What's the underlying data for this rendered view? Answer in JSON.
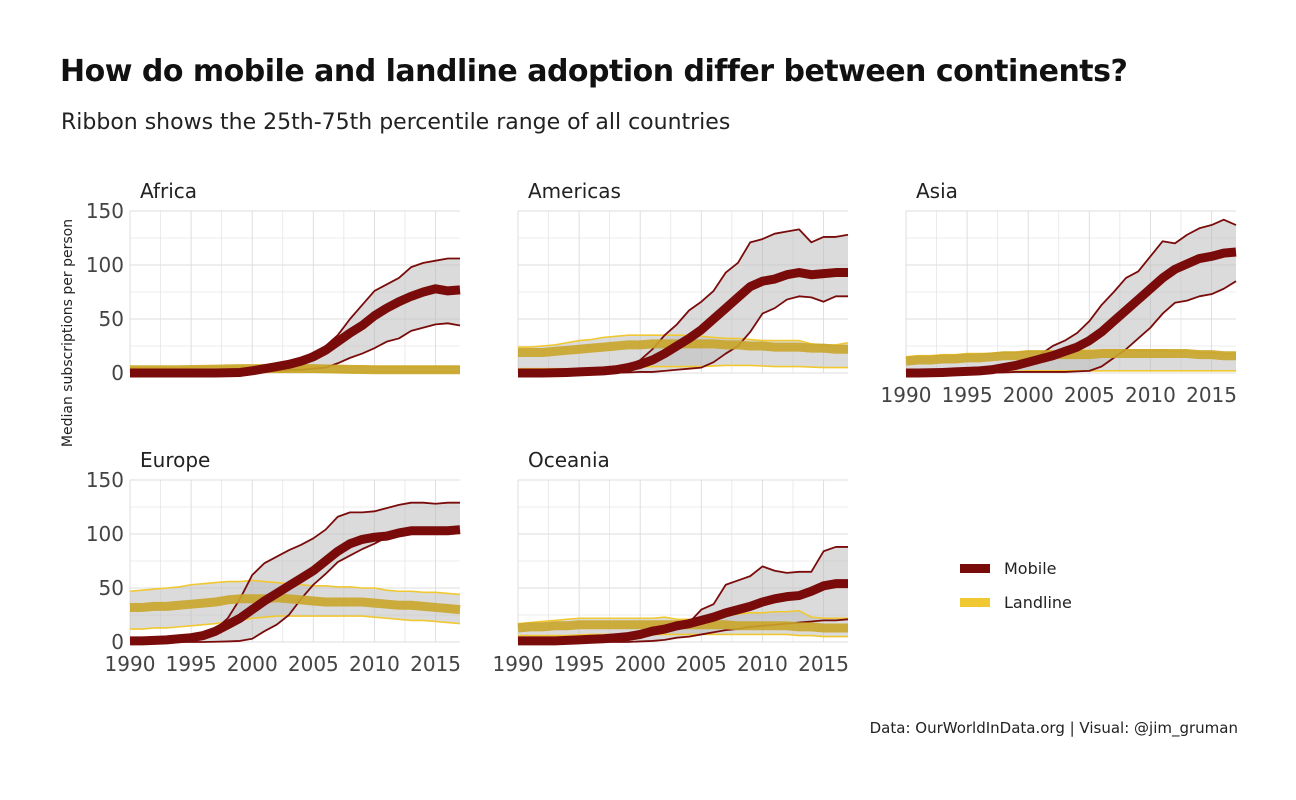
{
  "title": "How do mobile and landline adoption differ between continents?",
  "subtitle": "Ribbon shows the 25th-75th percentile range of all countries",
  "caption": "Data: OurWorldInData.org | Visual: @jim_gruman",
  "colors": {
    "mobile": "#7a0b0b",
    "landline": "#f0c832",
    "ribbon": "#bdbdbd",
    "grid": "#dedede"
  },
  "chart_data": {
    "type": "line",
    "ylabel": "Median subscriptions per person",
    "xlim": [
      1990,
      2017
    ],
    "ylim": [
      0,
      150
    ],
    "x_ticks": [
      1990,
      1995,
      2000,
      2005,
      2010,
      2015
    ],
    "y_ticks": [
      0,
      50,
      100,
      150
    ],
    "legend": {
      "position": "right",
      "entries": [
        "Mobile",
        "Landline"
      ]
    },
    "x": [
      1990,
      1991,
      1992,
      1993,
      1994,
      1995,
      1996,
      1997,
      1998,
      1999,
      2000,
      2001,
      2002,
      2003,
      2004,
      2005,
      2006,
      2007,
      2008,
      2009,
      2010,
      2011,
      2012,
      2013,
      2014,
      2015,
      2016,
      2017
    ],
    "panels": [
      {
        "name": "Africa",
        "mobile": {
          "median": [
            0,
            0,
            0,
            0,
            0,
            0,
            0,
            0,
            0.2,
            0.5,
            2,
            4,
            6,
            8,
            11,
            15,
            21,
            29,
            37,
            44,
            53,
            60,
            66,
            71,
            75,
            78,
            76,
            77
          ],
          "p25": [
            0,
            0,
            0,
            0,
            0,
            0,
            0,
            0,
            0,
            0,
            0.3,
            1,
            2,
            3,
            3,
            4,
            5,
            9,
            14,
            18,
            23,
            29,
            32,
            39,
            42,
            45,
            46,
            44
          ],
          "p75": [
            0,
            0,
            0,
            0,
            0,
            0,
            0,
            0,
            0.5,
            1.5,
            4,
            6,
            8,
            10,
            13,
            19,
            25,
            35,
            50,
            63,
            76,
            82,
            88,
            98,
            102,
            104,
            106,
            106
          ]
        },
        "landline": {
          "median": [
            3,
            3,
            3,
            3,
            3,
            3.2,
            3.4,
            3.6,
            3.8,
            4,
            4,
            4,
            4,
            4,
            4,
            4,
            3.8,
            3.6,
            3.4,
            3.2,
            3,
            3,
            3,
            3,
            3,
            3,
            3,
            3
          ],
          "p25": [
            0.5,
            0.5,
            0.5,
            0.6,
            0.6,
            0.7,
            0.7,
            0.8,
            0.8,
            0.9,
            1,
            1,
            1,
            1,
            1,
            1,
            1,
            1,
            1,
            1,
            1,
            1,
            1,
            1,
            1,
            1,
            1,
            1
          ],
          "p75": [
            5,
            5,
            5,
            5,
            5,
            5.5,
            6,
            6,
            6,
            6,
            6,
            6,
            6,
            6,
            6,
            6,
            6,
            6,
            6,
            6,
            6,
            6,
            6,
            6,
            6,
            6,
            6,
            6
          ]
        }
      },
      {
        "name": "Americas",
        "mobile": {
          "median": [
            0,
            0,
            0,
            0.2,
            0.5,
            1,
            1.5,
            2,
            3,
            5,
            8,
            12,
            18,
            25,
            32,
            40,
            50,
            60,
            70,
            80,
            85,
            87,
            91,
            93,
            91,
            92,
            93,
            93
          ],
          "p25": [
            0,
            0,
            0,
            0,
            0,
            0,
            0,
            0,
            0.2,
            0.5,
            1,
            1,
            2,
            3,
            4,
            5,
            10,
            18,
            25,
            38,
            55,
            60,
            68,
            71,
            70,
            66,
            71,
            71
          ],
          "p75": [
            2,
            2,
            2,
            2,
            2.5,
            3,
            3.5,
            4,
            5,
            7,
            12,
            22,
            35,
            45,
            58,
            66,
            76,
            93,
            102,
            121,
            124,
            129,
            131,
            133,
            121,
            126,
            126,
            128
          ]
        },
        "landline": {
          "median": [
            19,
            19,
            19,
            20,
            21,
            22,
            23,
            24,
            25,
            26,
            26,
            27,
            27,
            27,
            27,
            27,
            27,
            26,
            26,
            25,
            25,
            24,
            24,
            24,
            23,
            23,
            22,
            22
          ],
          "p25": [
            4,
            4,
            4,
            4,
            4,
            4,
            4.5,
            5,
            5,
            5,
            5.5,
            6,
            6,
            6,
            6,
            6,
            6.5,
            7,
            7,
            7,
            6.5,
            6,
            6,
            6,
            5.5,
            5,
            5,
            5
          ],
          "p75": [
            24,
            24,
            25,
            26,
            28,
            30,
            31,
            33,
            34,
            35,
            35,
            35,
            35,
            35,
            35,
            34,
            33,
            32,
            32,
            31,
            30,
            30,
            30,
            30,
            27,
            26,
            26,
            28
          ]
        }
      },
      {
        "name": "Asia",
        "mobile": {
          "median": [
            0,
            0,
            0.2,
            0.5,
            1,
            1.5,
            2,
            3,
            5,
            7,
            10,
            13,
            16,
            20,
            24,
            30,
            38,
            48,
            58,
            68,
            78,
            88,
            96,
            101,
            106,
            108,
            111,
            112
          ],
          "p25": [
            0,
            0,
            0,
            0,
            0,
            0,
            0,
            0.2,
            0.5,
            1,
            1,
            1,
            1,
            1,
            1.5,
            2,
            6,
            14,
            22,
            32,
            42,
            55,
            65,
            67,
            71,
            73,
            78,
            85
          ],
          "p75": [
            2,
            2,
            2,
            2,
            2.5,
            3,
            3.5,
            4,
            5,
            8,
            12,
            17,
            25,
            30,
            37,
            48,
            63,
            75,
            88,
            94,
            108,
            122,
            120,
            128,
            134,
            137,
            142,
            137
          ]
        },
        "landline": {
          "median": [
            11,
            12,
            12,
            13,
            13,
            14,
            14,
            15,
            16,
            16,
            17,
            17,
            17,
            17,
            17,
            17,
            18,
            18,
            18,
            18,
            18,
            18,
            18,
            18,
            17,
            17,
            16,
            16
          ],
          "p25": [
            1,
            1,
            1,
            1,
            1,
            1,
            1,
            1,
            1.5,
            1.5,
            2,
            2,
            2,
            2,
            2,
            2,
            2,
            2,
            2,
            2,
            2,
            2,
            2,
            2,
            2,
            2,
            2,
            2
          ],
          "p75": [
            15,
            16,
            16,
            17,
            17,
            18,
            18,
            18,
            19,
            19,
            20,
            20,
            20,
            21,
            21,
            21,
            21,
            21,
            21,
            21,
            21,
            21,
            20,
            20,
            19,
            19,
            18,
            18
          ]
        }
      },
      {
        "name": "Europe",
        "mobile": {
          "median": [
            1,
            1,
            1.5,
            2,
            3,
            4,
            6,
            10,
            16,
            22,
            30,
            38,
            45,
            52,
            59,
            66,
            75,
            84,
            91,
            95,
            97,
            98,
            101,
            103,
            103,
            103,
            103,
            104
          ],
          "p25": [
            0,
            0,
            0,
            0,
            0,
            0,
            0,
            0.2,
            0.5,
            1,
            3,
            10,
            16,
            25,
            40,
            53,
            63,
            74,
            80,
            86,
            91,
            97,
            98,
            100,
            102,
            102,
            102,
            103
          ],
          "p75": [
            2,
            2,
            2.5,
            3,
            4,
            5,
            8,
            12,
            22,
            40,
            62,
            73,
            79,
            85,
            90,
            96,
            104,
            116,
            120,
            120,
            121,
            124,
            127,
            129,
            129,
            128,
            129,
            129
          ]
        },
        "landline": {
          "median": [
            32,
            32,
            33,
            33,
            34,
            35,
            36,
            37,
            39,
            40,
            40,
            40,
            41,
            40,
            39,
            38,
            37,
            37,
            37,
            37,
            36,
            35,
            34,
            34,
            33,
            32,
            31,
            30
          ],
          "p25": [
            12,
            12,
            13,
            13,
            14,
            15,
            16,
            17,
            19,
            20,
            22,
            23,
            24,
            24,
            24,
            24,
            24,
            24,
            24,
            24,
            23,
            22,
            21,
            20,
            20,
            19,
            18,
            17
          ],
          "p75": [
            47,
            48,
            49,
            50,
            51,
            53,
            54,
            55,
            56,
            56,
            57,
            56,
            55,
            54,
            53,
            52,
            52,
            51,
            51,
            50,
            50,
            48,
            47,
            47,
            46,
            46,
            45,
            44
          ]
        }
      },
      {
        "name": "Oceania",
        "mobile": {
          "median": [
            1,
            1,
            1,
            1,
            1.5,
            2,
            2.5,
            3,
            4,
            5,
            7,
            10,
            12,
            15,
            17,
            20,
            23,
            27,
            30,
            33,
            37,
            40,
            42,
            43,
            47,
            52,
            54,
            54
          ],
          "p25": [
            0,
            0,
            0,
            0,
            0,
            0,
            0,
            0,
            0,
            0,
            0.5,
            1,
            2,
            4,
            5,
            7,
            9,
            11,
            12,
            14,
            15,
            16,
            17,
            18,
            19,
            20,
            20,
            21
          ],
          "p75": [
            1,
            1,
            1.5,
            2,
            2.5,
            3,
            3.5,
            4,
            5,
            7,
            10,
            14,
            13,
            19,
            18,
            30,
            35,
            53,
            57,
            61,
            70,
            66,
            64,
            65,
            65,
            84,
            88,
            88
          ]
        },
        "landline": {
          "median": [
            13,
            14,
            14,
            15,
            15,
            16,
            16,
            16,
            16,
            16,
            16,
            16,
            16,
            16,
            16,
            16,
            16,
            16,
            15,
            15,
            15,
            15,
            15,
            14,
            14,
            13,
            13,
            13
          ],
          "p25": [
            6,
            6,
            6,
            6,
            6,
            6.5,
            7,
            7,
            7,
            7,
            7,
            7,
            7,
            7,
            7,
            7,
            7,
            7,
            7,
            7,
            7,
            7,
            7,
            6,
            6,
            5,
            5,
            5
          ],
          "p75": [
            17,
            18,
            19,
            20,
            21,
            22,
            22,
            22,
            22,
            22,
            22,
            22,
            23,
            21,
            21,
            20,
            22,
            24,
            26,
            27,
            27,
            28,
            28,
            29,
            23,
            22,
            22,
            22
          ]
        }
      }
    ]
  }
}
